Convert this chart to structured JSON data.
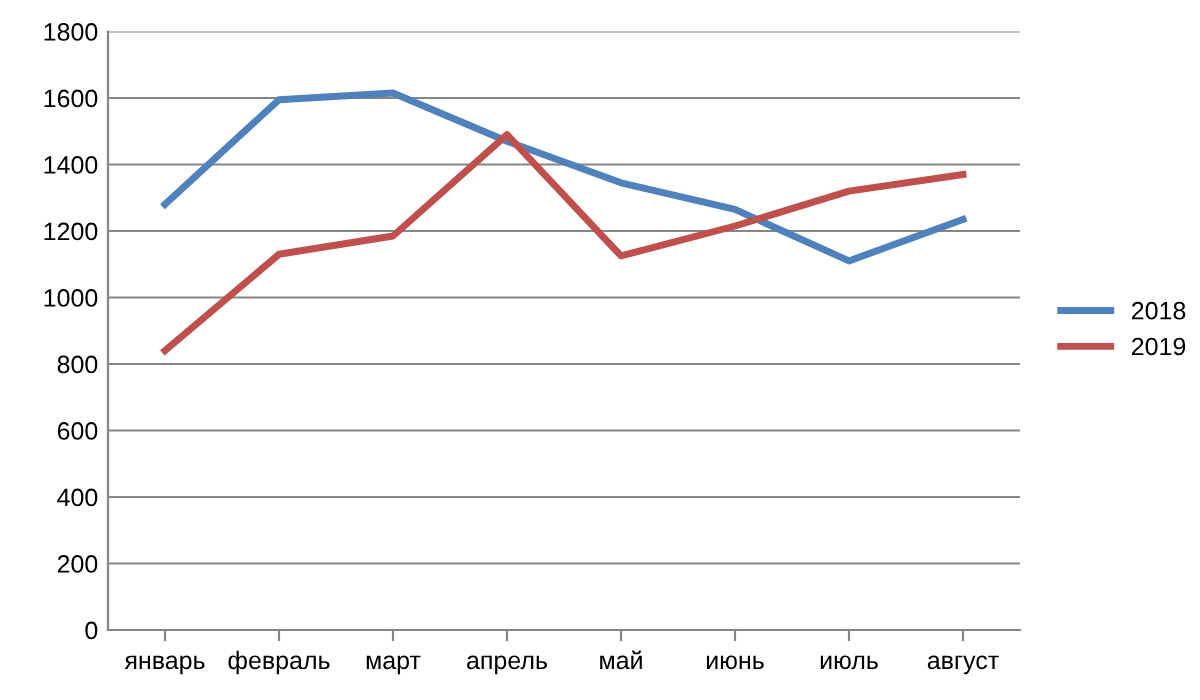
{
  "chart_data": {
    "type": "line",
    "categories": [
      "январь",
      "февраль",
      "март",
      "апрель",
      "май",
      "июнь",
      "июль",
      "август"
    ],
    "series": [
      {
        "name": "2018",
        "color": "#4f81bd",
        "values": [
          1280,
          1595,
          1615,
          1470,
          1345,
          1265,
          1110,
          1235
        ]
      },
      {
        "name": "2019",
        "color": "#c0504d",
        "values": [
          840,
          1130,
          1185,
          1490,
          1125,
          1215,
          1320,
          1370
        ]
      }
    ],
    "ylim": [
      0,
      1800
    ],
    "yticks": [
      0,
      200,
      400,
      600,
      800,
      1000,
      1200,
      1400,
      1600,
      1800
    ],
    "grid": "y",
    "legend": "right",
    "marker": "none",
    "line_style": "solid"
  }
}
